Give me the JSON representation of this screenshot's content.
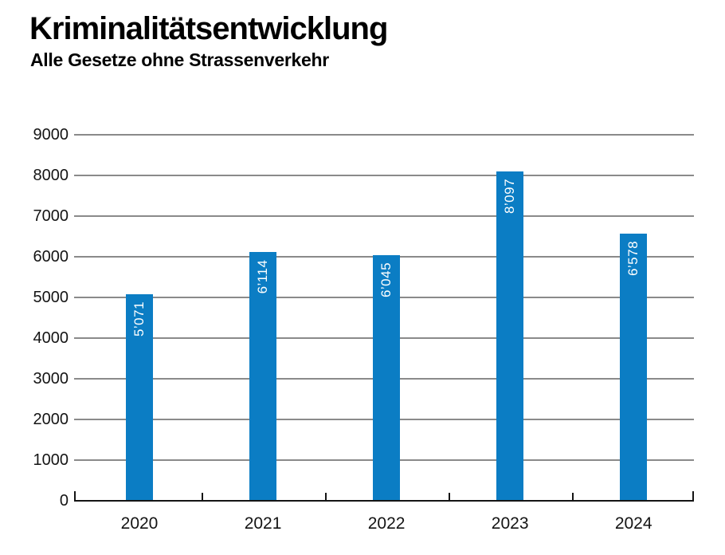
{
  "header": {
    "title": "Kriminalitätsentwicklung",
    "subtitle": "Alle Gesetze ohne Strassenverkehr"
  },
  "chart_data": {
    "type": "bar",
    "title": "Kriminalitätsentwicklung",
    "subtitle": "Alle Gesetze ohne Strassenverkehr",
    "categories": [
      "2020",
      "2021",
      "2022",
      "2023",
      "2024"
    ],
    "values": [
      5071,
      6114,
      6045,
      8097,
      6578
    ],
    "value_labels": [
      "5’071",
      "6’114",
      "6’045",
      "8’097",
      "6’578"
    ],
    "xlabel": "",
    "ylabel": "",
    "ylim": [
      0,
      9000
    ],
    "ytick_step": 1000,
    "yticks": [
      0,
      1000,
      2000,
      3000,
      4000,
      5000,
      6000,
      7000,
      8000,
      9000
    ],
    "grid": true,
    "legend": "none",
    "bar_color": "#0b7dc4",
    "value_label_color": "#ffffff",
    "axis_color": "#141414",
    "grid_color": "#8a8a8a",
    "background_color": "#ffffff"
  }
}
